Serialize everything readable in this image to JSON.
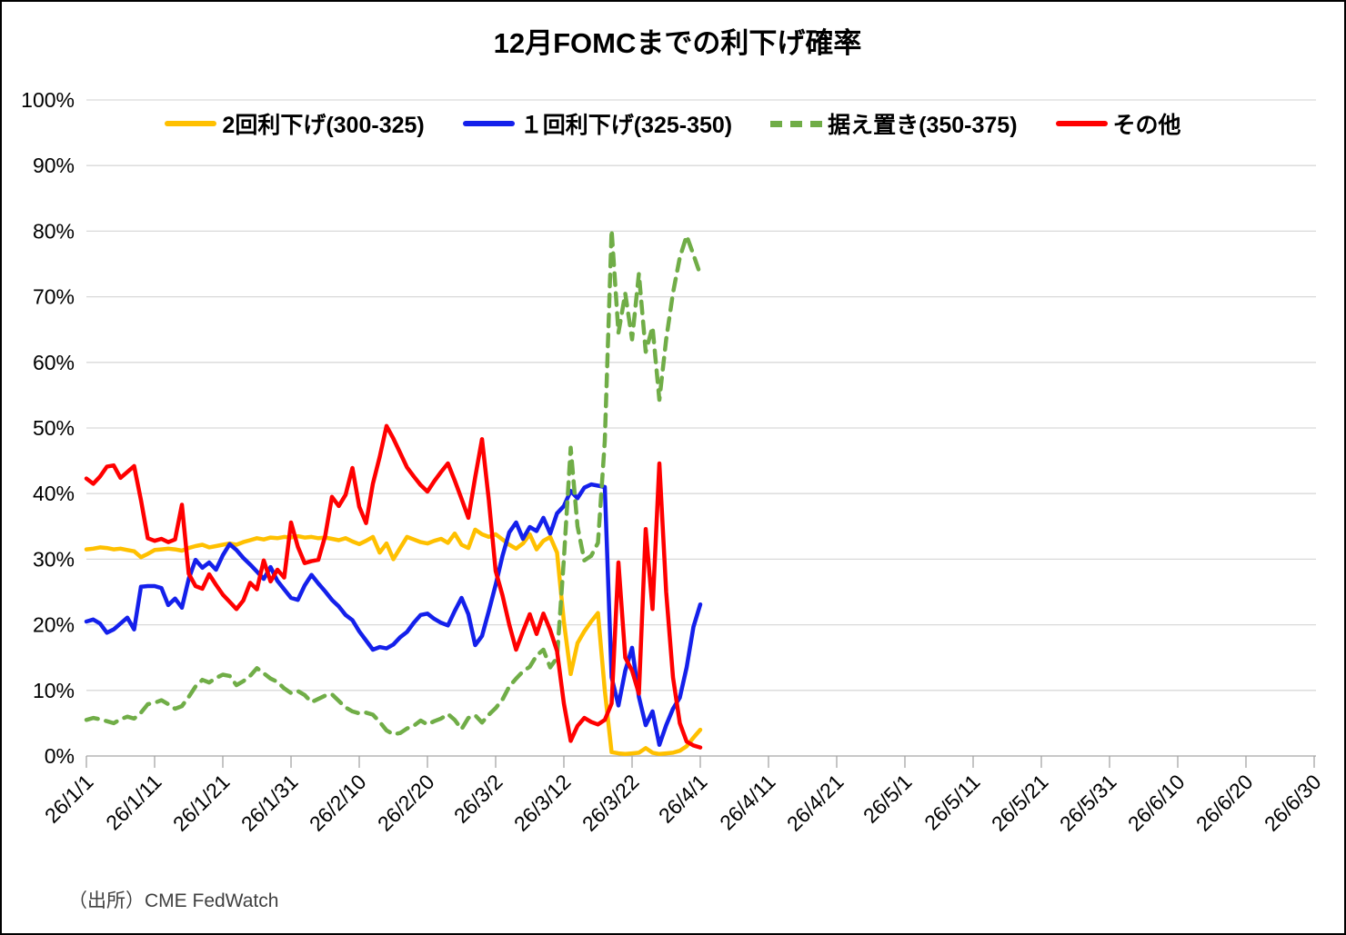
{
  "title": "12月FOMCまでの利下げ確率",
  "source_note": "（出所）CME FedWatch",
  "colors": {
    "orange_series": "#FFC000",
    "blue_series": "#1420EB",
    "green_series": "#70AD47",
    "red_series": "#FF0000",
    "gridline": "#D9D9D9",
    "axis": "#A6A6A6",
    "text": "#000000",
    "source_text": "#404040",
    "background": "#FFFFFF"
  },
  "chart_data": {
    "type": "line",
    "title": "12月FOMCまでの利下げ確率",
    "xlabel": "",
    "ylabel": "",
    "ylim": [
      0,
      100
    ],
    "grid": "horizontal-only",
    "legend_position": "top",
    "y_tick_labels": [
      "0%",
      "10%",
      "20%",
      "30%",
      "40%",
      "50%",
      "60%",
      "70%",
      "80%",
      "90%",
      "100%"
    ],
    "x_tick_labels": [
      "26/1/1",
      "26/1/11",
      "26/1/21",
      "26/1/31",
      "26/2/10",
      "26/2/20",
      "26/3/2",
      "26/3/12",
      "26/3/22",
      "26/4/1",
      "26/4/11",
      "26/4/21",
      "26/5/1",
      "26/5/11",
      "26/5/21",
      "26/5/31",
      "26/6/10",
      "26/6/20",
      "26/6/30"
    ],
    "x_axis_end_label": "26/6/30",
    "data_points_daily": true,
    "x": [
      "26/1/1",
      "26/1/2",
      "26/1/3",
      "26/1/4",
      "26/1/5",
      "26/1/6",
      "26/1/7",
      "26/1/8",
      "26/1/9",
      "26/1/10",
      "26/1/11",
      "26/1/12",
      "26/1/13",
      "26/1/14",
      "26/1/15",
      "26/1/16",
      "26/1/17",
      "26/1/18",
      "26/1/19",
      "26/1/20",
      "26/1/21",
      "26/1/22",
      "26/1/23",
      "26/1/24",
      "26/1/25",
      "26/1/26",
      "26/1/27",
      "26/1/28",
      "26/1/29",
      "26/1/30",
      "26/1/31",
      "26/2/1",
      "26/2/2",
      "26/2/3",
      "26/2/4",
      "26/2/5",
      "26/2/6",
      "26/2/7",
      "26/2/8",
      "26/2/9",
      "26/2/10",
      "26/2/11",
      "26/2/12",
      "26/2/13",
      "26/2/14",
      "26/2/15",
      "26/2/16",
      "26/2/17",
      "26/2/18",
      "26/2/19",
      "26/2/20",
      "26/2/21",
      "26/2/22",
      "26/2/23",
      "26/2/24",
      "26/2/25",
      "26/2/26",
      "26/2/27",
      "26/2/28",
      "26/3/1",
      "26/3/2",
      "26/3/3",
      "26/3/4",
      "26/3/5",
      "26/3/6",
      "26/3/7",
      "26/3/8",
      "26/3/9",
      "26/3/10",
      "26/3/11",
      "26/3/12",
      "26/3/13",
      "26/3/14",
      "26/3/15",
      "26/3/16",
      "26/3/17",
      "26/3/18",
      "26/3/19",
      "26/3/20",
      "26/3/21",
      "26/3/22",
      "26/3/23",
      "26/3/24",
      "26/3/25",
      "26/3/26",
      "26/3/27",
      "26/3/28",
      "26/3/29",
      "26/3/30",
      "26/3/31",
      "26/4/1"
    ],
    "series": [
      {
        "name": "2回利下げ(300-325)",
        "color": "#FFC000",
        "style": "solid",
        "values": [
          31.5,
          31.6,
          31.8,
          31.7,
          31.5,
          31.6,
          31.4,
          31.2,
          30.3,
          30.8,
          31.4,
          31.5,
          31.6,
          31.5,
          31.3,
          31.7,
          32.0,
          32.2,
          31.8,
          32.0,
          32.2,
          32.4,
          32.2,
          32.6,
          32.9,
          33.2,
          33.0,
          33.3,
          33.2,
          33.4,
          33.3,
          33.5,
          33.3,
          33.4,
          33.2,
          33.3,
          33.1,
          32.9,
          33.2,
          32.7,
          32.3,
          32.8,
          33.4,
          31.0,
          32.4,
          30.0,
          31.7,
          33.4,
          33.0,
          32.6,
          32.4,
          32.8,
          33.1,
          32.5,
          33.9,
          32.2,
          31.7,
          34.5,
          33.8,
          33.4,
          33.8,
          33.0,
          32.2,
          31.6,
          32.4,
          33.8,
          31.5,
          32.8,
          33.4,
          31.0,
          20.5,
          12.5,
          17.2,
          19.0,
          20.5,
          21.8,
          10.0,
          0.6,
          0.4,
          0.3,
          0.4,
          0.5,
          1.2,
          0.5,
          0.3,
          0.4,
          0.5,
          0.8,
          1.5,
          2.8,
          4.0
        ]
      },
      {
        "name": "１回利下げ(325-350)",
        "color": "#1420EB",
        "style": "solid",
        "values": [
          20.5,
          20.8,
          20.2,
          18.8,
          19.3,
          20.2,
          21.1,
          19.3,
          25.8,
          25.9,
          25.9,
          25.6,
          23.0,
          24.0,
          22.6,
          27.0,
          29.9,
          28.7,
          29.5,
          28.4,
          30.6,
          32.3,
          31.4,
          30.2,
          29.2,
          28.1,
          27.0,
          28.8,
          26.7,
          25.4,
          24.1,
          23.8,
          26.0,
          27.6,
          26.3,
          25.1,
          23.8,
          22.8,
          21.5,
          20.7,
          19.0,
          17.6,
          16.2,
          16.6,
          16.4,
          17.0,
          18.1,
          18.9,
          20.3,
          21.5,
          21.7,
          20.9,
          20.3,
          19.9,
          22.1,
          24.1,
          21.6,
          16.9,
          18.3,
          22.1,
          26.1,
          30.5,
          34.1,
          35.6,
          33.1,
          34.9,
          34.3,
          36.3,
          33.9,
          37.0,
          38.1,
          40.4,
          39.3,
          40.9,
          41.4,
          41.2,
          41.0,
          12.0,
          7.7,
          13.0,
          16.5,
          9.0,
          4.7,
          6.8,
          1.7,
          4.7,
          7.2,
          8.9,
          13.5,
          19.7,
          23.1
        ]
      },
      {
        "name": "据え置き(350-375)",
        "color": "#70AD47",
        "style": "dashed",
        "values": [
          5.5,
          5.8,
          5.6,
          5.3,
          5.0,
          5.6,
          6.0,
          5.7,
          6.6,
          7.9,
          8.1,
          8.5,
          7.9,
          7.2,
          7.6,
          9.0,
          10.6,
          11.6,
          11.2,
          11.9,
          12.4,
          12.2,
          10.8,
          11.4,
          12.2,
          13.4,
          12.6,
          11.8,
          11.3,
          10.3,
          9.6,
          9.9,
          9.3,
          8.2,
          8.7,
          9.2,
          9.4,
          8.4,
          7.4,
          6.8,
          6.5,
          6.6,
          6.3,
          5.2,
          3.9,
          3.3,
          3.5,
          4.2,
          4.6,
          5.4,
          4.8,
          5.3,
          5.7,
          6.4,
          5.5,
          4.1,
          5.8,
          6.2,
          5.1,
          6.3,
          7.3,
          8.6,
          10.6,
          11.8,
          12.9,
          13.6,
          15.3,
          16.2,
          13.5,
          15.0,
          30.0,
          47.0,
          35.0,
          29.8,
          30.5,
          32.5,
          48.0,
          80.2,
          64.5,
          70.5,
          63.5,
          73.5,
          61.6,
          65.4,
          54.3,
          63.5,
          70.6,
          76.0,
          79.3,
          76.4,
          73.4
        ]
      },
      {
        "name": "その他",
        "color": "#FF0000",
        "style": "solid",
        "values": [
          42.3,
          41.5,
          42.6,
          44.1,
          44.3,
          42.4,
          43.3,
          44.2,
          39.0,
          33.2,
          32.8,
          33.1,
          32.6,
          33.0,
          38.3,
          27.8,
          25.9,
          25.5,
          27.7,
          26.1,
          24.6,
          23.5,
          22.4,
          23.7,
          26.4,
          25.4,
          29.8,
          26.6,
          28.4,
          27.2,
          35.6,
          31.9,
          29.4,
          29.7,
          29.9,
          33.5,
          39.5,
          38.1,
          39.8,
          43.9,
          38.0,
          35.5,
          41.5,
          45.6,
          50.3,
          48.4,
          46.2,
          44.0,
          42.6,
          41.3,
          40.3,
          41.9,
          43.3,
          44.6,
          42.0,
          39.2,
          36.3,
          42.5,
          48.3,
          39.0,
          28.2,
          24.5,
          20.0,
          16.2,
          19.0,
          21.6,
          18.6,
          21.7,
          19.2,
          16.0,
          8.0,
          2.3,
          4.6,
          5.8,
          5.2,
          4.8,
          5.5,
          8.0,
          29.5,
          15.0,
          13.0,
          9.5,
          34.6,
          22.4,
          44.6,
          25.0,
          12.0,
          5.0,
          2.2,
          1.6,
          1.3
        ]
      }
    ]
  }
}
